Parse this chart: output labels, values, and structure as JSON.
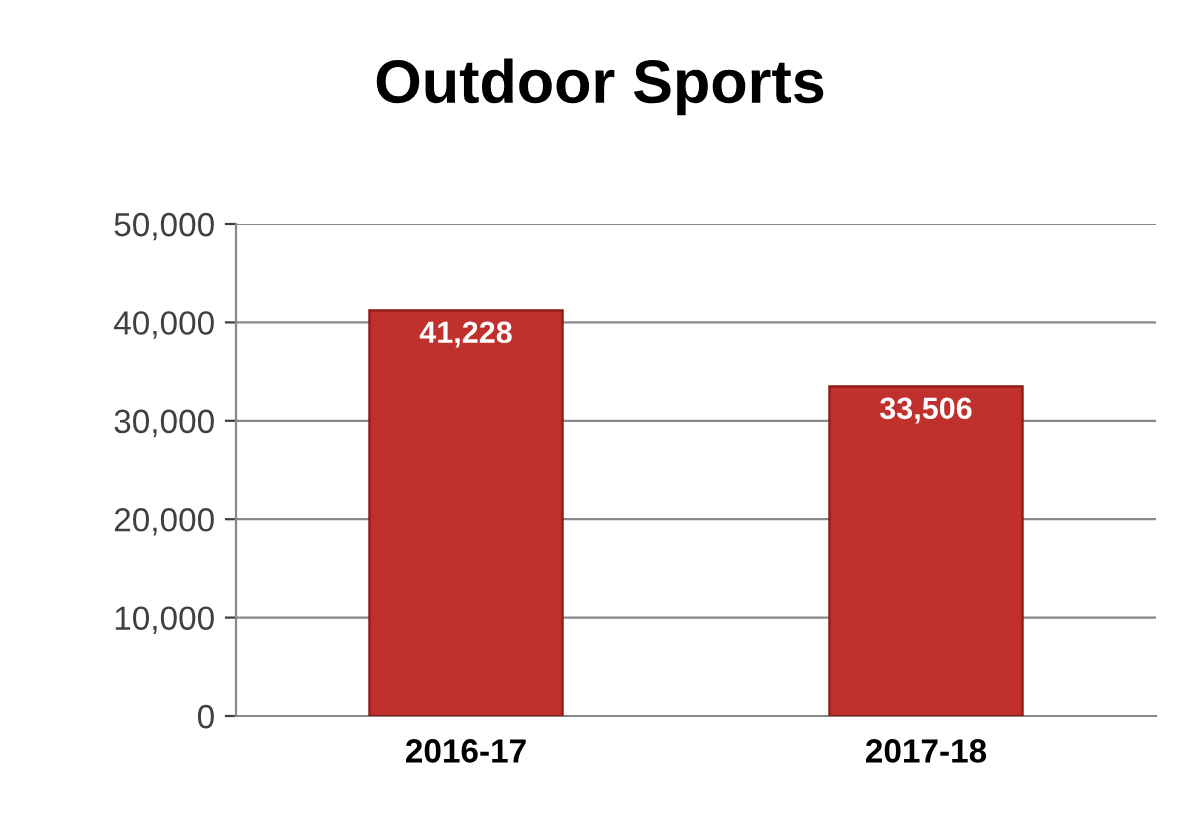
{
  "chart_data": {
    "type": "bar",
    "title": "Outdoor Sports",
    "categories": [
      "2016-17",
      "2017-18"
    ],
    "values": [
      41228,
      33506
    ],
    "color": "#c0302c",
    "value_labels": [
      "41,228",
      "33,506"
    ],
    "ylim": [
      0,
      50000
    ],
    "yticks": [
      {
        "value": 0,
        "label": "0"
      },
      {
        "value": 10000,
        "label": "10,000"
      },
      {
        "value": 20000,
        "label": "20,000"
      },
      {
        "value": 30000,
        "label": "30,000"
      },
      {
        "value": 40000,
        "label": "40,000"
      },
      {
        "value": 50000,
        "label": "50,000"
      }
    ],
    "grid": "y"
  }
}
